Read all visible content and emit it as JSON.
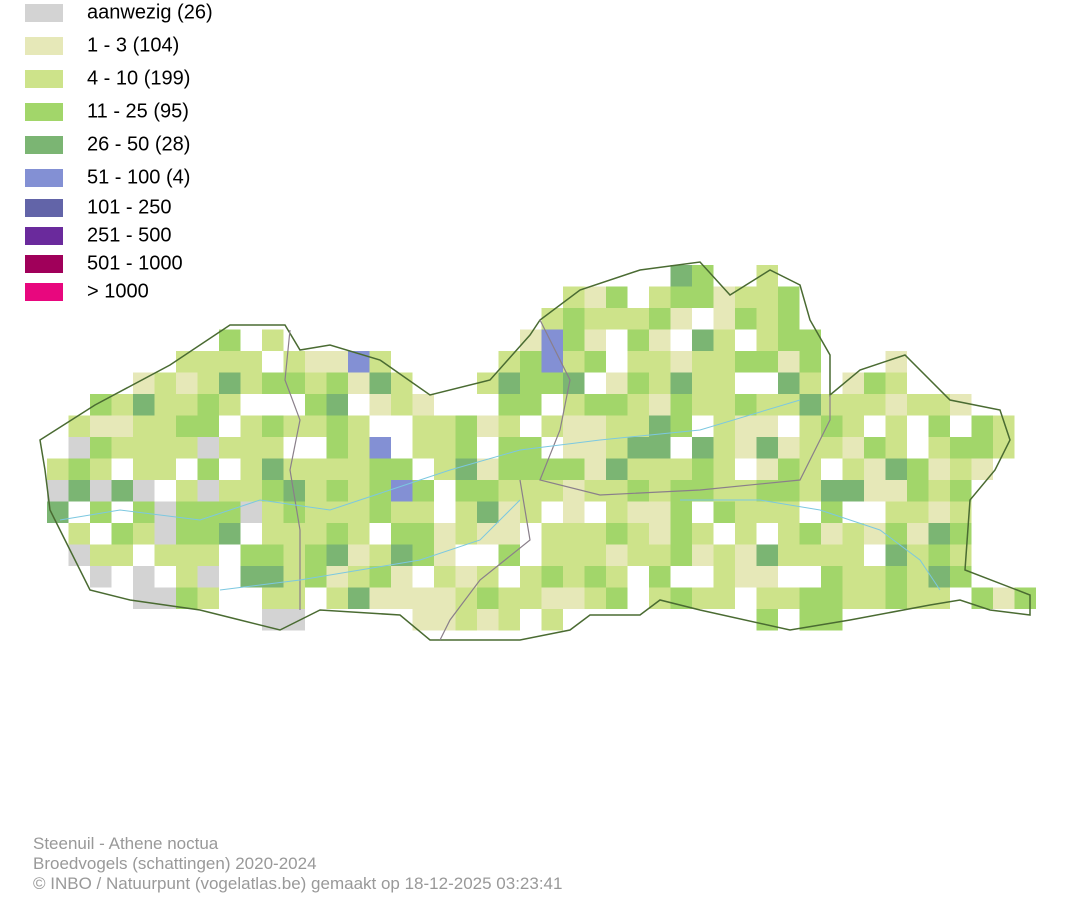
{
  "legend": {
    "items": [
      {
        "label": "aanwezig (26)",
        "color": "#d3d3d3"
      },
      {
        "label": "1 - 3 (104)",
        "color": "#e6e8b8"
      },
      {
        "label": "4 - 10 (199)",
        "color": "#cde38a"
      },
      {
        "label": "11 - 25 (95)",
        "color": "#a2d66a"
      },
      {
        "label": "26 - 50 (28)",
        "color": "#7bb573"
      },
      {
        "label": "51 - 100 (4)",
        "color": "#8390d4"
      },
      {
        "label": "101 - 250",
        "color": "#6264a8"
      },
      {
        "label": "251 - 500",
        "color": "#6a2a9c"
      },
      {
        "label": "501 - 1000",
        "color": "#a0005a"
      },
      {
        "label": "> 1000",
        "color": "#e8077e"
      }
    ]
  },
  "footer": {
    "species": "Steenuil - Athene noctua",
    "dataset": "Broedvogels (schattingen) 2020-2024",
    "credit": "© INBO / Natuurpunt (vogelatlas.be) gemaakt op 18-12-2025 03:23:41"
  }
}
